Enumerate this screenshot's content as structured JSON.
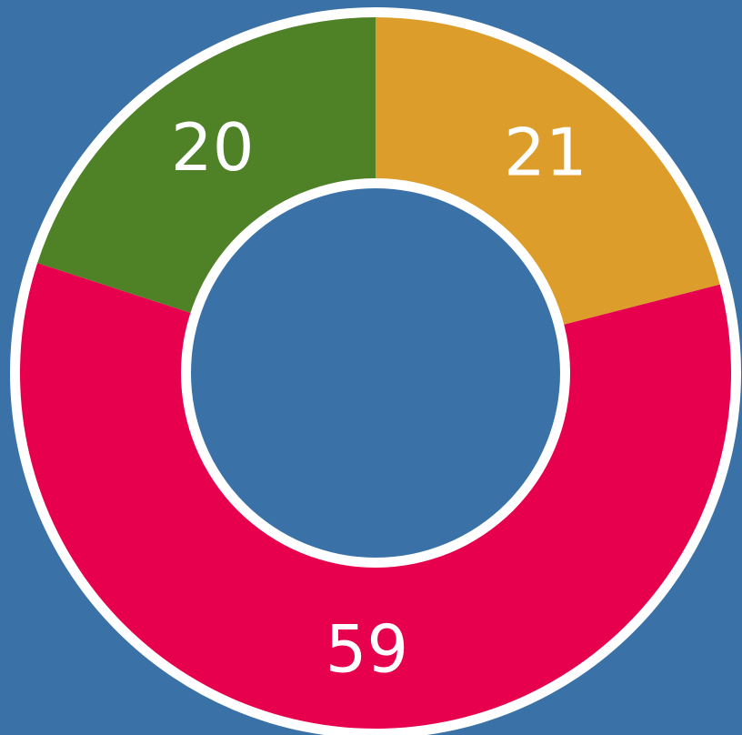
{
  "chart_data": {
    "type": "donut",
    "values": [
      21,
      59,
      20
    ],
    "colors": [
      "#dd9d2a",
      "#e6004d",
      "#4f8227"
    ],
    "background": "#3a72a8"
  }
}
